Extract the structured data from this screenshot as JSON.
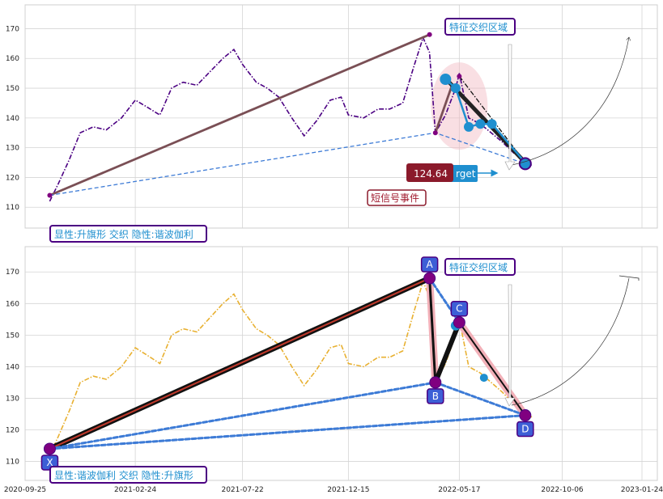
{
  "chart_data": [
    {
      "type": "line",
      "panel": "top",
      "ylim": [
        103,
        178
      ],
      "y_ticks": [
        110,
        120,
        130,
        140,
        150,
        160,
        170
      ],
      "grid": true,
      "series": [
        {
          "color": "#4b0082",
          "style": "dash-dot",
          "x": [
            "2020-10-29",
            "2020-11-10",
            "2020-11-25",
            "2020-12-10",
            "2020-12-28",
            "2021-01-15",
            "2021-02-05",
            "2021-02-24",
            "2021-03-10",
            "2021-03-30",
            "2021-04-15",
            "2021-05-01",
            "2021-05-20",
            "2021-06-05",
            "2021-06-25",
            "2021-07-10",
            "2021-07-22",
            "2021-08-10",
            "2021-08-25",
            "2021-09-10",
            "2021-09-28",
            "2021-10-15",
            "2021-11-01",
            "2021-11-20",
            "2021-12-05",
            "2021-12-15",
            "2022-01-05",
            "2022-01-25",
            "2022-02-10",
            "2022-02-28",
            "2022-03-15",
            "2022-03-28",
            "2022-04-06",
            "2022-04-14",
            "2022-04-28",
            "2022-05-12",
            "2022-05-17",
            "2022-05-30",
            "2022-06-15",
            "2022-06-30",
            "2022-07-15",
            "2022-08-01",
            "2022-08-16",
            "2022-08-25"
          ],
          "values": [
            112,
            118,
            126,
            135,
            137,
            136,
            140,
            146,
            144,
            141,
            150,
            152,
            151,
            155,
            160,
            163,
            158,
            152,
            150,
            147,
            140,
            134,
            139,
            146,
            147,
            141,
            140,
            143,
            143,
            145,
            157,
            167,
            162,
            135,
            141,
            150,
            155,
            140,
            138,
            135,
            132,
            128,
            126,
            124
          ]
        },
        {
          "color": "#1f8fcf",
          "style": "solid",
          "x": [
            "2022-04-28",
            "2022-05-12",
            "2022-05-30",
            "2022-06-15",
            "2022-07-01",
            "2022-08-16"
          ],
          "values": [
            153,
            150,
            137,
            138,
            138,
            125
          ]
        }
      ],
      "pattern_lines": [
        {
          "color": "#7a4f55",
          "x": [
            "2020-10-29",
            "2022-04-06"
          ],
          "values": [
            114,
            168
          ]
        },
        {
          "color": "#7a4f55",
          "x": [
            "2022-04-14",
            "2022-05-07"
          ],
          "values": [
            135,
            151
          ]
        },
        {
          "color": "#3d7bd6",
          "style": "dashed",
          "x": [
            "2020-10-29",
            "2022-04-14",
            "2022-08-16"
          ],
          "values": [
            114,
            135,
            124.64
          ]
        },
        {
          "color": "#111111",
          "style": "dash-dot",
          "x": [
            "2022-05-17",
            "2022-08-16"
          ],
          "values": [
            154,
            125
          ]
        },
        {
          "color": "#222222",
          "x": [
            "2022-05-03",
            "2022-08-16"
          ],
          "values": [
            152,
            125
          ]
        }
      ],
      "annotations": {
        "target_value": "124.64",
        "target_hidden_text": "rget",
        "short_signal": "短信号事件",
        "feature_zone": "特征交织区域",
        "pattern_label": "显性:升旗形 交织 隐性:谐波伽利"
      },
      "feature_zone_area": {
        "x": "2022-05-17",
        "y": 144
      }
    },
    {
      "type": "line",
      "panel": "bottom",
      "ylim": [
        104,
        178
      ],
      "y_ticks": [
        110,
        120,
        130,
        140,
        150,
        160,
        170
      ],
      "x_ticks": [
        "2020-09-25",
        "2021-02-24",
        "2021-07-22",
        "2021-12-15",
        "2022-05-17",
        "2022-10-06",
        "2023-01-24"
      ],
      "grid": true,
      "series": [
        {
          "color": "#e8b030",
          "style": "dash-dot",
          "x": [
            "2020-10-29",
            "2020-11-10",
            "2020-11-25",
            "2020-12-10",
            "2020-12-28",
            "2021-01-15",
            "2021-02-05",
            "2021-02-24",
            "2021-03-10",
            "2021-03-30",
            "2021-04-15",
            "2021-05-01",
            "2021-05-20",
            "2021-06-05",
            "2021-06-25",
            "2021-07-10",
            "2021-07-22",
            "2021-08-10",
            "2021-08-25",
            "2021-09-10",
            "2021-09-28",
            "2021-10-15",
            "2021-11-01",
            "2021-11-20",
            "2021-12-05",
            "2021-12-15",
            "2022-01-05",
            "2022-01-25",
            "2022-02-10",
            "2022-02-28",
            "2022-03-15",
            "2022-03-28",
            "2022-04-06",
            "2022-04-14",
            "2022-04-28",
            "2022-05-12",
            "2022-05-17",
            "2022-05-30",
            "2022-06-15",
            "2022-06-30",
            "2022-07-15",
            "2022-08-01",
            "2022-08-16",
            "2022-08-25"
          ],
          "values": [
            112,
            118,
            126,
            135,
            137,
            136,
            140,
            146,
            144,
            141,
            150,
            152,
            151,
            155,
            160,
            163,
            158,
            152,
            150,
            147,
            140,
            134,
            139,
            146,
            147,
            141,
            140,
            143,
            143,
            145,
            157,
            167,
            162,
            135,
            141,
            150,
            155,
            140,
            138,
            135,
            132,
            128,
            126,
            124
          ]
        }
      ],
      "points": [
        {
          "label": "X",
          "x": "2020-10-29",
          "y": 114
        },
        {
          "label": "A",
          "x": "2022-04-06",
          "y": 168
        },
        {
          "label": "B",
          "x": "2022-04-14",
          "y": 135
        },
        {
          "label": "C",
          "x": "2022-05-17",
          "y": 154
        },
        {
          "label": "D",
          "x": "2022-08-16",
          "y": 124.6
        }
      ],
      "annotations": {
        "feature_zone": "特征交织区域",
        "pattern_label": "显性:谐波伽利 交织 隐性:升旗形"
      }
    }
  ]
}
